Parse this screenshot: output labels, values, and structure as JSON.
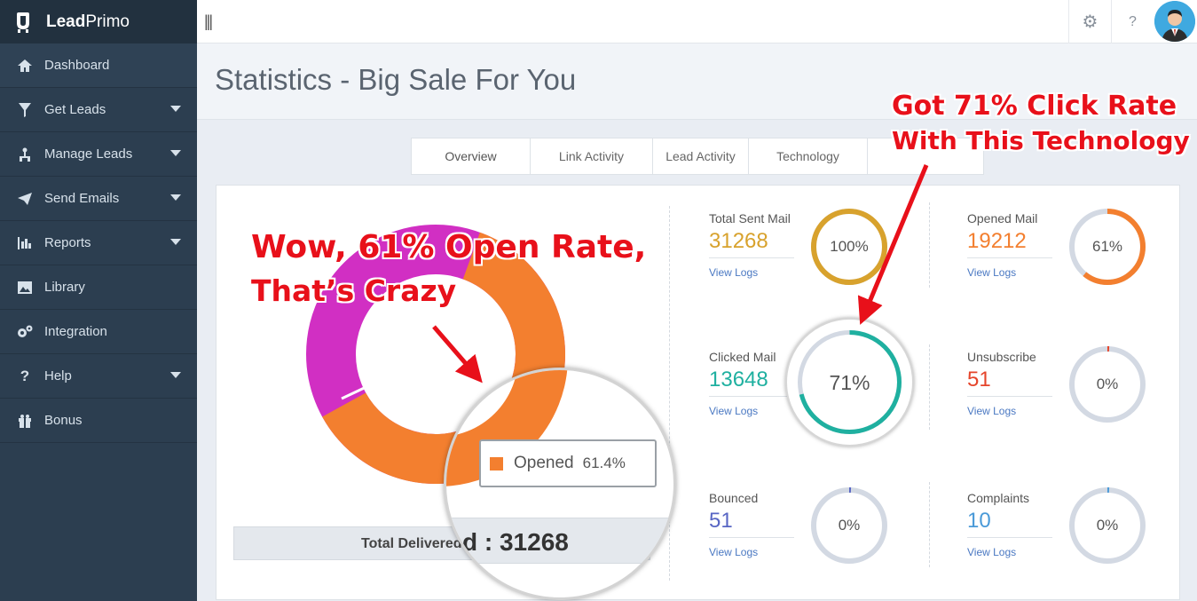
{
  "app": {
    "brand_lead": "Lead",
    "brand_rest": "Primo"
  },
  "sidebar": {
    "items": [
      {
        "label": "Dashboard",
        "icon": "home-icon",
        "has_submenu": false
      },
      {
        "label": "Get Leads",
        "icon": "funnel-icon",
        "has_submenu": true
      },
      {
        "label": "Manage Leads",
        "icon": "sitemap-icon",
        "has_submenu": true
      },
      {
        "label": "Send Emails",
        "icon": "paper-plane-icon",
        "has_submenu": true
      },
      {
        "label": "Reports",
        "icon": "bar-chart-icon",
        "has_submenu": true
      },
      {
        "label": "Library",
        "icon": "image-icon",
        "has_submenu": false
      },
      {
        "label": "Integration",
        "icon": "gears-icon",
        "has_submenu": false
      },
      {
        "label": "Help",
        "icon": "question-icon",
        "has_submenu": true
      },
      {
        "label": "Bonus",
        "icon": "gift-icon",
        "has_submenu": false
      }
    ]
  },
  "topbar": {
    "menu_glyph": "|||",
    "settings_glyph": "⚙",
    "help_glyph": "?"
  },
  "page": {
    "title": "Statistics - Big Sale For You"
  },
  "tabs": [
    "Overview",
    "Link Activity",
    "Lead Activity",
    "Technology"
  ],
  "stats": {
    "total_sent": {
      "label": "Total Sent Mail",
      "value": "31268",
      "percent": 100,
      "percent_label": "100%",
      "logs": "View Logs",
      "color": "#d8a22d"
    },
    "opened": {
      "label": "Opened Mail",
      "value": "19212",
      "percent": 61,
      "percent_label": "61%",
      "logs": "View Logs",
      "color": "#f37f2f"
    },
    "clicked": {
      "label": "Clicked Mail",
      "value": "13648",
      "percent": 71,
      "percent_label": "71%",
      "logs": "View Logs",
      "color": "#1fb0a0"
    },
    "unsubscribe": {
      "label": "Unsubscribe",
      "value": "51",
      "percent": 0,
      "percent_label": "0%",
      "logs": "View Logs",
      "color": "#e5452b"
    },
    "bounced": {
      "label": "Bounced",
      "value": "51",
      "percent": 0,
      "percent_label": "0%",
      "logs": "View Logs",
      "color": "#5866c4"
    },
    "complaints": {
      "label": "Complaints",
      "value": "10",
      "percent": 0,
      "percent_label": "0%",
      "logs": "View Logs",
      "color": "#4a9ad8"
    }
  },
  "donut": {
    "opened_share": 61.4,
    "opened_color": "#f37f2f",
    "other_color": "#d12fc3",
    "tooltip_label": "Opened",
    "tooltip_value": "61.4%"
  },
  "total_delivered": {
    "label": "Total Delivered",
    "value_zoomed": "d : 31268"
  },
  "annotations": {
    "left_line1": "Wow, 61% Open Rate,",
    "left_line2": "That’s Crazy",
    "right_line1": "Got 71% Click Rate",
    "right_line2": "With This Technology"
  }
}
